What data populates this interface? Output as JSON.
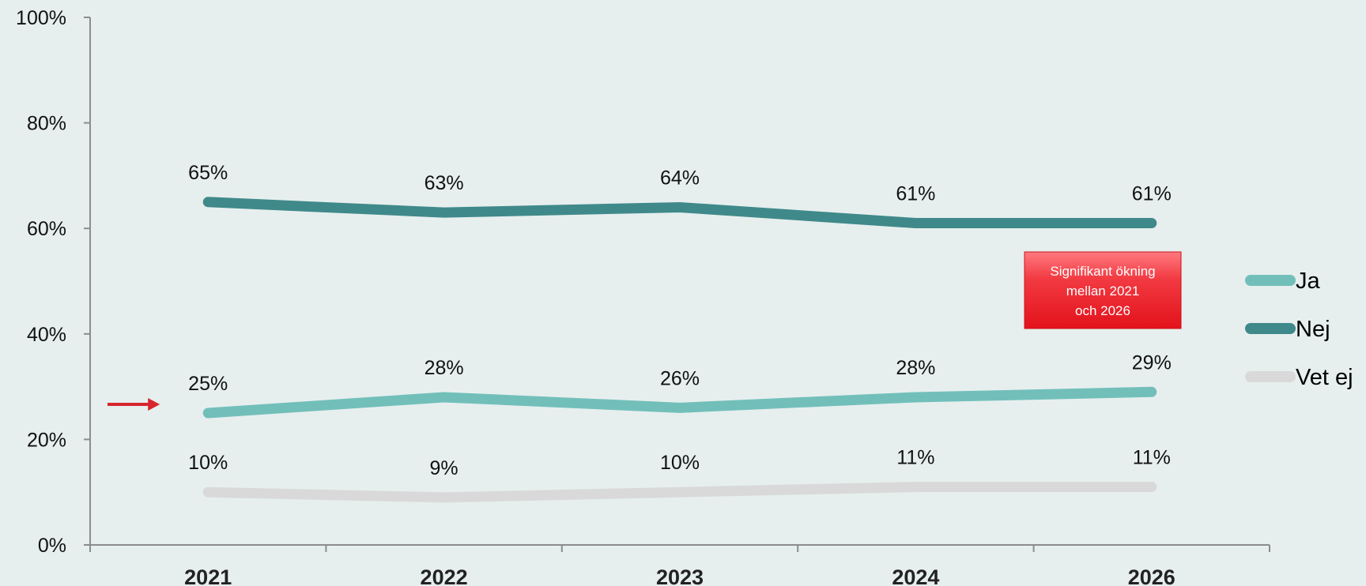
{
  "chart_data": {
    "type": "line",
    "categories": [
      "2021",
      "2022",
      "2023",
      "2024",
      "2026"
    ],
    "series": [
      {
        "name": "Ja",
        "values": [
          25,
          28,
          26,
          28,
          29
        ],
        "labels": [
          "25%",
          "28%",
          "26%",
          "28%",
          "29%"
        ],
        "color": "#72bfba"
      },
      {
        "name": "Nej",
        "values": [
          65,
          63,
          64,
          61,
          61
        ],
        "labels": [
          "65%",
          "63%",
          "64%",
          "61%",
          "61%"
        ],
        "color": "#40898a"
      },
      {
        "name": "Vet ej",
        "values": [
          10,
          9,
          10,
          11,
          11
        ],
        "labels": [
          "10%",
          "9%",
          "10%",
          "11%",
          "11%"
        ],
        "color": "#d9d9d9"
      }
    ],
    "ylim": [
      0,
      100
    ],
    "yticks": [
      "0%",
      "20%",
      "40%",
      "60%",
      "80%",
      "100%"
    ],
    "legend_position": "right",
    "grid": false,
    "annotation": {
      "lines": [
        "Signifikant ökning",
        "mellan 2021",
        "och 2026"
      ],
      "color": "#e8161f",
      "arrow_color": "#d7262e",
      "arrow_target_series": "Ja",
      "arrow_target_category": "2021"
    }
  }
}
